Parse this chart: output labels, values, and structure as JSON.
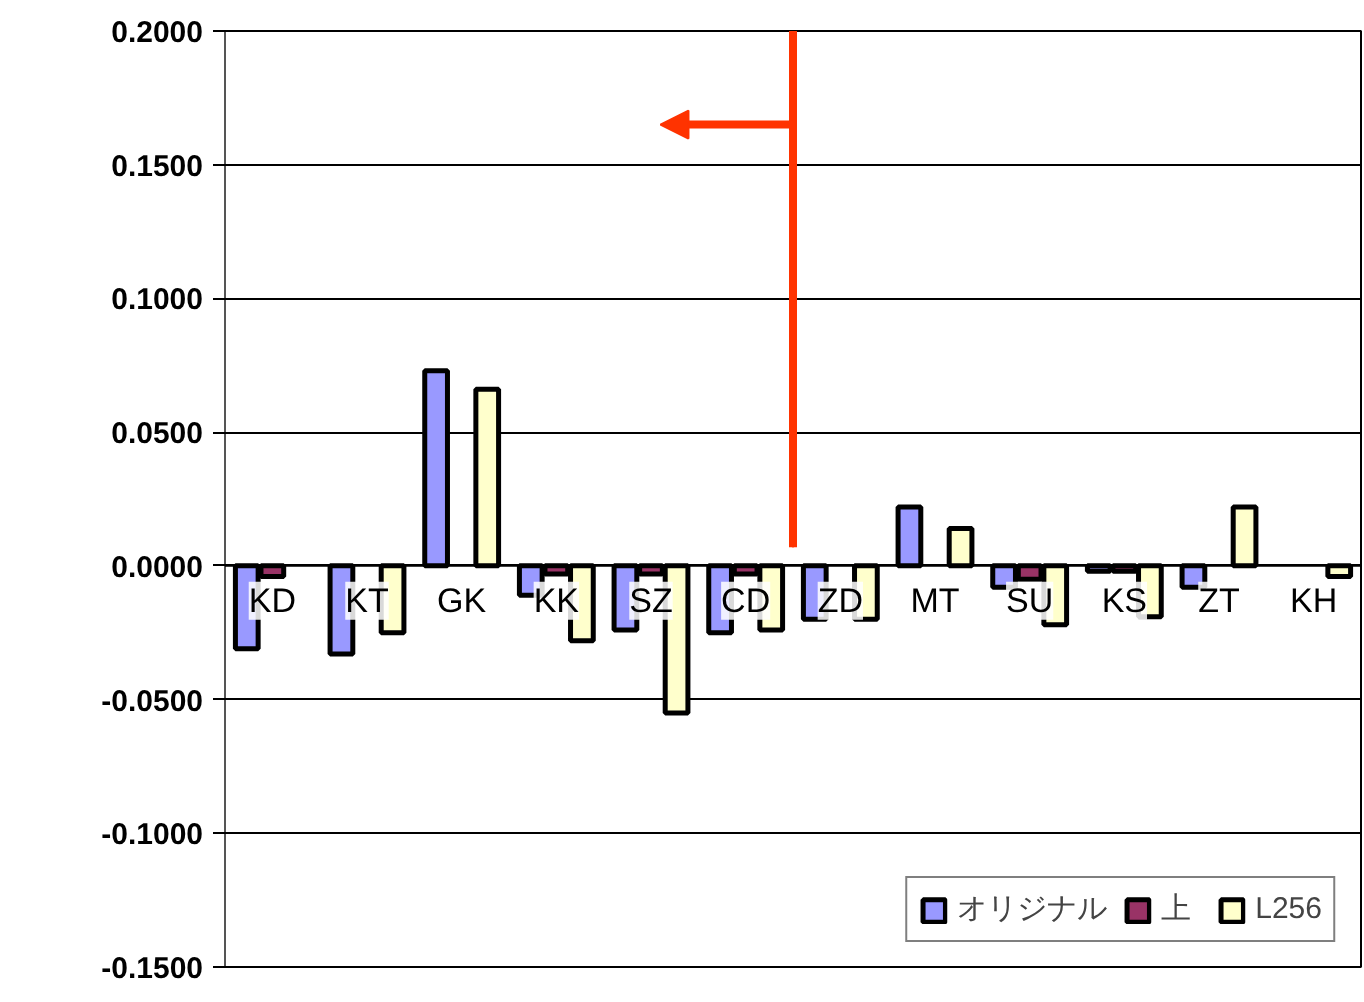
{
  "chart_data": {
    "type": "bar",
    "categories": [
      "KD",
      "KT",
      "GK",
      "KK",
      "SZ",
      "CD",
      "ZD",
      "MT",
      "SU",
      "KS",
      "ZT",
      "KH"
    ],
    "series": [
      {
        "name": "オリジナル",
        "color": "#9999ff",
        "values": [
          -0.031,
          -0.033,
          0.073,
          -0.011,
          -0.024,
          -0.025,
          -0.02,
          0.022,
          -0.008,
          -0.002,
          -0.008,
          null
        ]
      },
      {
        "name": "上",
        "color": "#993366",
        "values": [
          -0.004,
          null,
          null,
          -0.003,
          -0.003,
          -0.003,
          null,
          null,
          -0.005,
          -0.002,
          null,
          null
        ]
      },
      {
        "name": "L256",
        "color": "#ffffcc",
        "values": [
          null,
          -0.025,
          0.066,
          -0.028,
          -0.055,
          -0.024,
          -0.02,
          0.014,
          -0.022,
          -0.019,
          0.022,
          -0.004
        ]
      }
    ],
    "ylim": [
      -0.15,
      0.2
    ],
    "yticks": [
      {
        "value": -0.15,
        "label": "-0.1500"
      },
      {
        "value": -0.1,
        "label": "-0.1000"
      },
      {
        "value": -0.05,
        "label": "-0.0500"
      },
      {
        "value": 0,
        "label": "0.0000"
      },
      {
        "value": 0.05,
        "label": "0.0500"
      },
      {
        "value": 0.1,
        "label": "0.1000"
      },
      {
        "value": 0.15,
        "label": "0.1500"
      },
      {
        "value": 0.2,
        "label": "0.2000"
      }
    ],
    "grid": "y",
    "legend": "bottom right"
  }
}
